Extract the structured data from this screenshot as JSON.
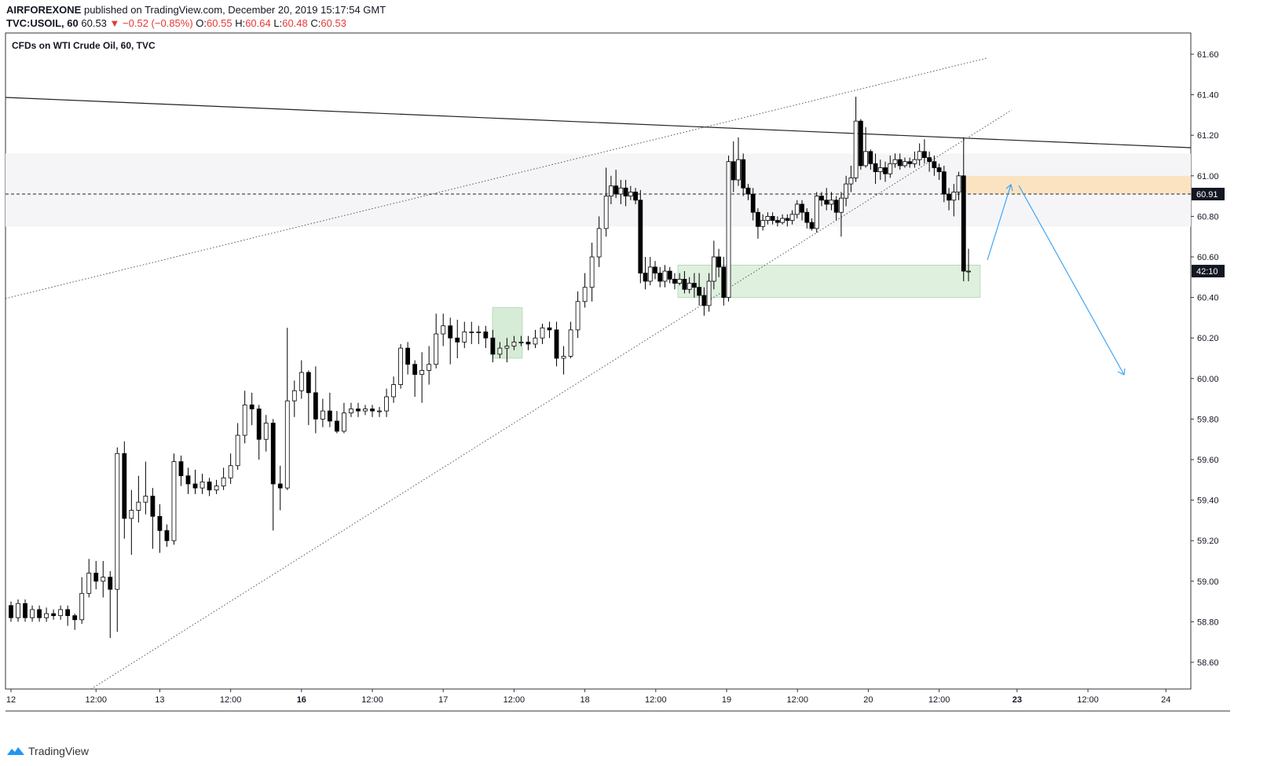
{
  "header": {
    "author": "AIRFOREXONE",
    "published_text": "published on TradingView.com, December 20, 2019 15:17:54 GMT",
    "symbol": "TVC:USOIL, 60",
    "last": "60.53",
    "change": "−0.52 (−0.85%)",
    "open_label": "O:",
    "open": "60.55",
    "high_label": "H:",
    "high": "60.64",
    "low_label": "L:",
    "low": "60.48",
    "close_label": "C:",
    "close": "60.53"
  },
  "footer": {
    "brand": "TradingView",
    "logo_icon": "tradingview-logo-icon"
  },
  "chart_data": {
    "type": "candlestick",
    "title": "CFDs on WTI Crude Oil, 60, TVC",
    "y_ticks": [
      "61.60",
      "61.40",
      "61.20",
      "61.00",
      "60.80",
      "60.60",
      "60.40",
      "60.20",
      "60.00",
      "59.80",
      "59.60",
      "59.40",
      "59.20",
      "59.00",
      "58.80",
      "58.60"
    ],
    "ylim": [
      58.5,
      61.75
    ],
    "x_ticks": [
      {
        "label": "12",
        "bar": 0,
        "bold": false
      },
      {
        "label": "12:00",
        "bar": 12,
        "bold": false
      },
      {
        "label": "13",
        "bar": 21,
        "bold": false
      },
      {
        "label": "12:00",
        "bar": 31,
        "bold": false
      },
      {
        "label": "16",
        "bar": 41,
        "bold": true
      },
      {
        "label": "12:00",
        "bar": 51,
        "bold": false
      },
      {
        "label": "17",
        "bar": 61,
        "bold": false
      },
      {
        "label": "12:00",
        "bar": 71,
        "bold": false
      },
      {
        "label": "18",
        "bar": 81,
        "bold": false
      },
      {
        "label": "12:00",
        "bar": 91,
        "bold": false
      },
      {
        "label": "19",
        "bar": 101,
        "bold": false
      },
      {
        "label": "12:00",
        "bar": 111,
        "bold": false
      },
      {
        "label": "20",
        "bar": 121,
        "bold": false
      },
      {
        "label": "12:00",
        "bar": 131,
        "bold": false
      },
      {
        "label": "23",
        "bar": 142,
        "bold": true
      },
      {
        "label": "12:00",
        "bar": 152,
        "bold": false
      },
      {
        "label": "24",
        "bar": 163,
        "bold": false
      }
    ],
    "price_labels": [
      {
        "value": "60.91",
        "price": 60.91,
        "style": "dashed"
      },
      {
        "value": "42:10",
        "price": 60.53,
        "style": "countdown"
      }
    ],
    "candles": [
      [
        58.88,
        58.82,
        58.9,
        58.8
      ],
      [
        58.82,
        58.89,
        58.91,
        58.8
      ],
      [
        58.89,
        58.82,
        58.91,
        58.8
      ],
      [
        58.82,
        58.86,
        58.88,
        58.8
      ],
      [
        58.86,
        58.82,
        58.88,
        58.8
      ],
      [
        58.82,
        58.84,
        58.87,
        58.8
      ],
      [
        58.84,
        58.83,
        58.86,
        58.81
      ],
      [
        58.83,
        58.86,
        58.88,
        58.81
      ],
      [
        58.86,
        58.83,
        58.88,
        58.78
      ],
      [
        58.83,
        58.81,
        58.84,
        58.76
      ],
      [
        58.81,
        58.94,
        59.02,
        58.79
      ],
      [
        58.94,
        59.04,
        59.11,
        58.92
      ],
      [
        59.04,
        59.0,
        59.1,
        58.96
      ],
      [
        59.0,
        59.02,
        59.1,
        58.92
      ],
      [
        59.02,
        58.96,
        59.05,
        58.72
      ],
      [
        58.96,
        59.63,
        59.66,
        58.75
      ],
      [
        59.63,
        59.31,
        59.69,
        59.21
      ],
      [
        59.31,
        59.35,
        59.45,
        59.13
      ],
      [
        59.35,
        59.39,
        59.52,
        59.29
      ],
      [
        59.39,
        59.42,
        59.59,
        59.33
      ],
      [
        59.42,
        59.32,
        59.46,
        59.16
      ],
      [
        59.32,
        59.25,
        59.38,
        59.14
      ],
      [
        59.25,
        59.2,
        59.28,
        59.17
      ],
      [
        59.2,
        59.59,
        59.63,
        59.18
      ],
      [
        59.59,
        59.52,
        59.62,
        59.47
      ],
      [
        59.52,
        59.48,
        59.56,
        59.43
      ],
      [
        59.48,
        59.46,
        59.55,
        59.43
      ],
      [
        59.46,
        59.49,
        59.53,
        59.43
      ],
      [
        59.49,
        59.45,
        59.51,
        59.42
      ],
      [
        59.45,
        59.47,
        59.5,
        59.43
      ],
      [
        59.47,
        59.51,
        59.56,
        59.45
      ],
      [
        59.51,
        59.57,
        59.63,
        59.48
      ],
      [
        59.57,
        59.72,
        59.78,
        59.55
      ],
      [
        59.72,
        59.87,
        59.94,
        59.68
      ],
      [
        59.87,
        59.85,
        59.93,
        59.77
      ],
      [
        59.85,
        59.7,
        59.87,
        59.6
      ],
      [
        59.7,
        59.78,
        59.82,
        59.64
      ],
      [
        59.78,
        59.48,
        59.8,
        59.25
      ],
      [
        59.48,
        59.46,
        59.57,
        59.35
      ],
      [
        59.46,
        59.89,
        60.25,
        59.45
      ],
      [
        59.89,
        59.94,
        59.99,
        59.81
      ],
      [
        59.94,
        60.03,
        60.09,
        59.9
      ],
      [
        60.03,
        59.93,
        60.04,
        59.77
      ],
      [
        59.93,
        59.8,
        60.06,
        59.73
      ],
      [
        59.8,
        59.84,
        59.9,
        59.76
      ],
      [
        59.84,
        59.79,
        59.93,
        59.76
      ],
      [
        59.79,
        59.74,
        59.84,
        59.73
      ],
      [
        59.74,
        59.83,
        59.88,
        59.73
      ],
      [
        59.83,
        59.85,
        59.88,
        59.81
      ],
      [
        59.85,
        59.84,
        59.88,
        59.81
      ],
      [
        59.84,
        59.85,
        59.87,
        59.82
      ],
      [
        59.85,
        59.84,
        59.87,
        59.81
      ],
      [
        59.84,
        59.84,
        59.86,
        59.81
      ],
      [
        59.84,
        59.91,
        59.95,
        59.81
      ],
      [
        59.91,
        59.97,
        60.01,
        59.88
      ],
      [
        59.97,
        60.15,
        60.17,
        59.95
      ],
      [
        60.15,
        60.07,
        60.18,
        60.02
      ],
      [
        60.07,
        60.02,
        60.09,
        59.91
      ],
      [
        60.02,
        60.04,
        60.13,
        59.88
      ],
      [
        60.04,
        60.07,
        60.16,
        59.97
      ],
      [
        60.07,
        60.22,
        60.32,
        60.05
      ],
      [
        60.22,
        60.26,
        60.32,
        60.16
      ],
      [
        60.26,
        60.2,
        60.3,
        60.07
      ],
      [
        60.2,
        60.18,
        60.29,
        60.1
      ],
      [
        60.18,
        60.23,
        60.28,
        60.15
      ],
      [
        60.23,
        60.23,
        60.28,
        60.17
      ],
      [
        60.23,
        60.23,
        60.26,
        60.17
      ],
      [
        60.23,
        60.2,
        60.26,
        60.15
      ],
      [
        60.2,
        60.12,
        60.24,
        60.08
      ],
      [
        60.12,
        60.15,
        60.18,
        60.1
      ],
      [
        60.15,
        60.16,
        60.2,
        60.08
      ],
      [
        60.16,
        60.18,
        60.21,
        60.14
      ],
      [
        60.18,
        60.18,
        60.21,
        60.16
      ],
      [
        60.18,
        60.17,
        60.21,
        60.14
      ],
      [
        60.17,
        60.2,
        60.24,
        60.15
      ],
      [
        60.2,
        60.25,
        60.27,
        60.17
      ],
      [
        60.25,
        60.24,
        60.28,
        60.2
      ],
      [
        60.24,
        60.1,
        60.28,
        60.06
      ],
      [
        60.1,
        60.11,
        60.16,
        60.02
      ],
      [
        60.11,
        60.24,
        60.28,
        60.1
      ],
      [
        60.24,
        60.38,
        60.43,
        60.2
      ],
      [
        60.38,
        60.45,
        60.52,
        60.35
      ],
      [
        60.45,
        60.6,
        60.67,
        60.38
      ],
      [
        60.6,
        60.74,
        60.8,
        60.55
      ]
    ],
    "annotations": {
      "resistance_zone": [
        60.75,
        61.11
      ],
      "sell_zone": [
        60.91,
        61.0
      ],
      "demand_zone": [
        60.4,
        60.56
      ],
      "small_demand_zone": [
        60.1,
        60.35
      ]
    }
  }
}
